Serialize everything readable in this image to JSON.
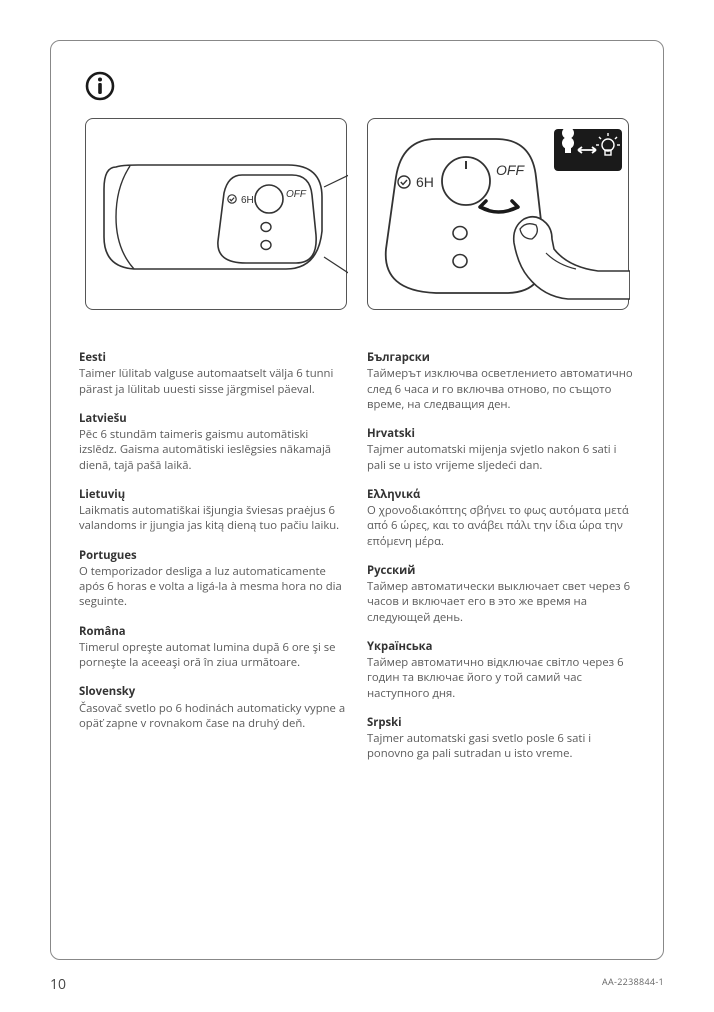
{
  "page_number": "10",
  "doc_code": "AA-2238844-1",
  "diagram": {
    "label_6h": "6H",
    "label_off": "OFF",
    "check_symbol": "✓"
  },
  "left_column": [
    {
      "lang": "Eesti",
      "text": "Taimer lülitab valguse automaatselt välja 6 tunni pärast ja lülitab uuesti sisse järgmisel päeval."
    },
    {
      "lang": "Latviešu",
      "text": "Pēc 6 stundām taimeris gaismu automātiski izslēdz.  Gaisma automātiski ieslēgsies nākamajā dienā, tajā pašā laikā."
    },
    {
      "lang": "Lietuvių",
      "text": "Laikmatis automatiškai išjungia šviesas praėjus 6 valandoms ir įjungia jas kitą dieną tuo pačiu laiku."
    },
    {
      "lang": "Portugues",
      "text": "O temporizador desliga a luz automaticamente após 6 horas e volta a ligá-la à mesma hora no dia seguinte."
    },
    {
      "lang": "Româna",
      "text": "Timerul opreşte automat lumina după 6 ore şi se porneşte la aceeaşi oră în ziua următoare."
    },
    {
      "lang": "Slovensky",
      "text": "Časovač svetlo po 6 hodinách automaticky vypne a opäť zapne v rovnakom čase na druhý deň."
    }
  ],
  "right_column": [
    {
      "lang": "Български",
      "text": "Таймерът изключва осветлението автоматично след 6 часа и го включва отново, по същото време, на следващия ден."
    },
    {
      "lang": "Hrvatski",
      "text": "Tajmer automatski mijenja svjetlo nakon 6 sati i pali se u isto vrijeme sljedeći dan."
    },
    {
      "lang": "Ελληνικά",
      "text": "Ο χρονοδιακόπτης σβήνει το φως αυτόματα μετά από 6 ώρες, και το ανάβει πάλι την ίδια ώρα την επόμενη μέρα."
    },
    {
      "lang": "Русский",
      "text": "Таймер автоматически выключает свет через 6 часов и включает его в это же время на следующей день."
    },
    {
      "lang": "Yкраїнська",
      "text": "Таймер автоматично відключає світло через 6 годин та включає його у той самий час наступного дня."
    },
    {
      "lang": "Srpski",
      "text": "Tajmer automatski gasi svetlo posle 6 sati i ponovno ga pali sutradan u isto vreme."
    }
  ]
}
